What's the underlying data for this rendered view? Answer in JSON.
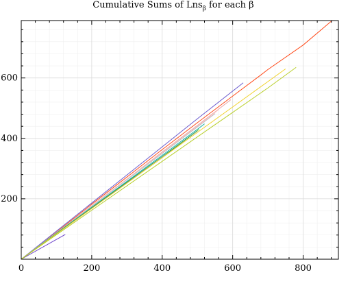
{
  "chart_data": {
    "type": "line",
    "title": "Cumulative Sums of Lns",
    "title_subscript": "β",
    "title_suffix": " for each β",
    "xlabel": "",
    "ylabel": "",
    "xlim": [
      0,
      900
    ],
    "ylim": [
      0,
      790
    ],
    "x_ticks": [
      0,
      200,
      400,
      600,
      800
    ],
    "y_ticks": [
      200,
      400,
      600
    ],
    "x_tick_labels": [
      "0",
      "200",
      "400",
      "600",
      "800"
    ],
    "y_tick_labels": [
      "200",
      "400",
      "600"
    ],
    "grid": true,
    "legend": "none",
    "series": [
      {
        "color": "#6a3fc9",
        "x": [
          0,
          125
        ],
        "y": [
          0,
          82
        ]
      },
      {
        "color": "#ff4a1a",
        "x": [
          0,
          100,
          200,
          300,
          400,
          500,
          600,
          680,
          700,
          800,
          882
        ],
        "y": [
          0,
          90,
          182,
          272,
          363,
          452,
          540,
          610,
          628,
          709,
          790
        ]
      },
      {
        "color": "#6a5acd",
        "x": [
          0,
          100,
          200,
          300,
          400,
          500,
          630
        ],
        "y": [
          0,
          93,
          186,
          279,
          372,
          465,
          584
        ]
      },
      {
        "color": "#e8a0a0",
        "x": [
          0,
          100,
          200,
          300,
          400,
          500,
          595
        ],
        "y": [
          0,
          88,
          177,
          265,
          355,
          443,
          528
        ]
      },
      {
        "color": "#ffc8c8",
        "x": [
          0,
          100,
          200,
          300,
          400,
          500,
          560
        ],
        "y": [
          0,
          88,
          176,
          264,
          352,
          440,
          495
        ]
      },
      {
        "color": "#bfbfbf",
        "x": [
          0,
          100,
          200,
          300,
          400,
          500,
          550
        ],
        "y": [
          0,
          88,
          175,
          263,
          350,
          438,
          482
        ]
      },
      {
        "color": "#12b3a8",
        "x": [
          0,
          100,
          200,
          300,
          400,
          500,
          520
        ],
        "y": [
          0,
          86,
          172,
          258,
          344,
          430,
          448
        ]
      },
      {
        "color": "#7cc93a",
        "x": [
          0,
          100,
          200,
          300,
          400,
          505
        ],
        "y": [
          0,
          84,
          168,
          252,
          336,
          430
        ]
      },
      {
        "color": "#2e8b57",
        "x": [
          0,
          100,
          200,
          300,
          400,
          500
        ],
        "y": [
          0,
          85,
          170,
          255,
          340,
          425
        ]
      },
      {
        "color": "#f0d22a",
        "x": [
          0,
          100,
          200,
          300,
          400,
          500,
          600,
          700,
          750
        ],
        "y": [
          0,
          84,
          168,
          252,
          336,
          420,
          504,
          588,
          630
        ]
      },
      {
        "color": "#b8cf2a",
        "x": [
          0,
          100,
          200,
          300,
          400,
          500,
          600,
          700,
          780
        ],
        "y": [
          0,
          81,
          162,
          243,
          324,
          405,
          486,
          567,
          635
        ]
      }
    ]
  }
}
